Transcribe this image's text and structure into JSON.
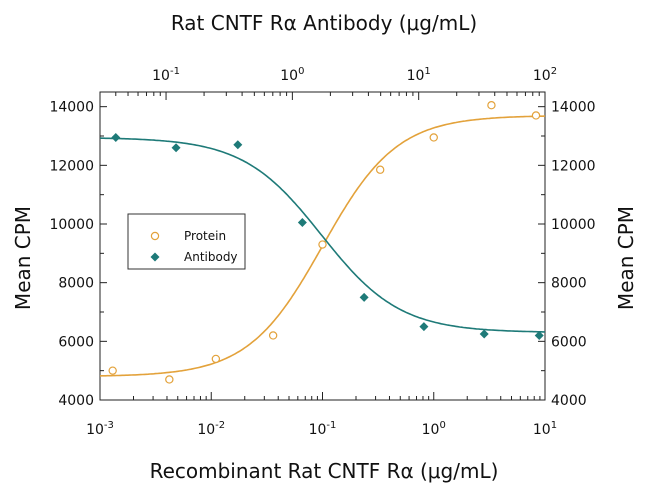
{
  "chart_data": {
    "type": "scatter",
    "title": "Rat CNTF Rα Antibody (μg/mL)",
    "xlabel": "Recombinant Rat CNTF Rα (μg/mL)",
    "ylabel_left": "Mean CPM",
    "ylabel_right": "Mean CPM",
    "x_scale": "log",
    "bottom_x_range": [
      0.001,
      10
    ],
    "top_x_range": [
      0.03,
      100
    ],
    "bottom_x_tick_values": [
      0.001,
      0.01,
      0.1,
      1,
      10
    ],
    "bottom_x_tick_base": [
      "10",
      "10",
      "10",
      "10",
      "10"
    ],
    "bottom_x_tick_exp": [
      "-3",
      "-2",
      "-1",
      "0",
      "1"
    ],
    "top_x_tick_values": [
      0.1,
      1,
      10,
      100
    ],
    "top_x_tick_base": [
      "10",
      "10",
      "10",
      "10"
    ],
    "top_x_tick_exp": [
      "-1",
      "0",
      "1",
      "2"
    ],
    "left_y_range": [
      4000,
      14500
    ],
    "left_y_ticks": [
      4000,
      6000,
      8000,
      10000,
      12000,
      14000
    ],
    "left_y_tick_labels": [
      "4000",
      "6000",
      "8000",
      "10000",
      "12000",
      "14000"
    ],
    "right_y_range": [
      4000,
      14500
    ],
    "right_y_ticks": [
      4000,
      6000,
      8000,
      10000,
      12000,
      14000
    ],
    "right_y_tick_labels": [
      "4000",
      "6000",
      "8000",
      "10000",
      "12000",
      "14000"
    ],
    "grid": false,
    "legend_position": "center-left",
    "series": [
      {
        "name": "Protein",
        "marker": "open-circle",
        "color": "#E3A23B",
        "axis": "bottom",
        "x": [
          0.0013,
          0.0042,
          0.011,
          0.036,
          0.1,
          0.33,
          1.0,
          3.3,
          8.3
        ],
        "y": [
          5000,
          4700,
          5400,
          6200,
          9300,
          11850,
          12950,
          14050,
          13700
        ]
      },
      {
        "name": "Antibody",
        "marker": "filled-diamond",
        "color": "#1E7A78",
        "axis": "top",
        "x": [
          0.04,
          0.12,
          0.37,
          1.2,
          3.7,
          11,
          33,
          90
        ],
        "y": [
          12950,
          12600,
          12700,
          10050,
          7500,
          6500,
          6250,
          6200
        ]
      }
    ],
    "fit_curves": [
      {
        "series": "Protein",
        "bottom": 4800,
        "top": 13700,
        "ec50": 0.1,
        "hill": 1.3
      },
      {
        "series": "Antibody",
        "top": 12950,
        "bottom": 6300,
        "ec50": 1.7,
        "hill": 1.4
      }
    ]
  }
}
